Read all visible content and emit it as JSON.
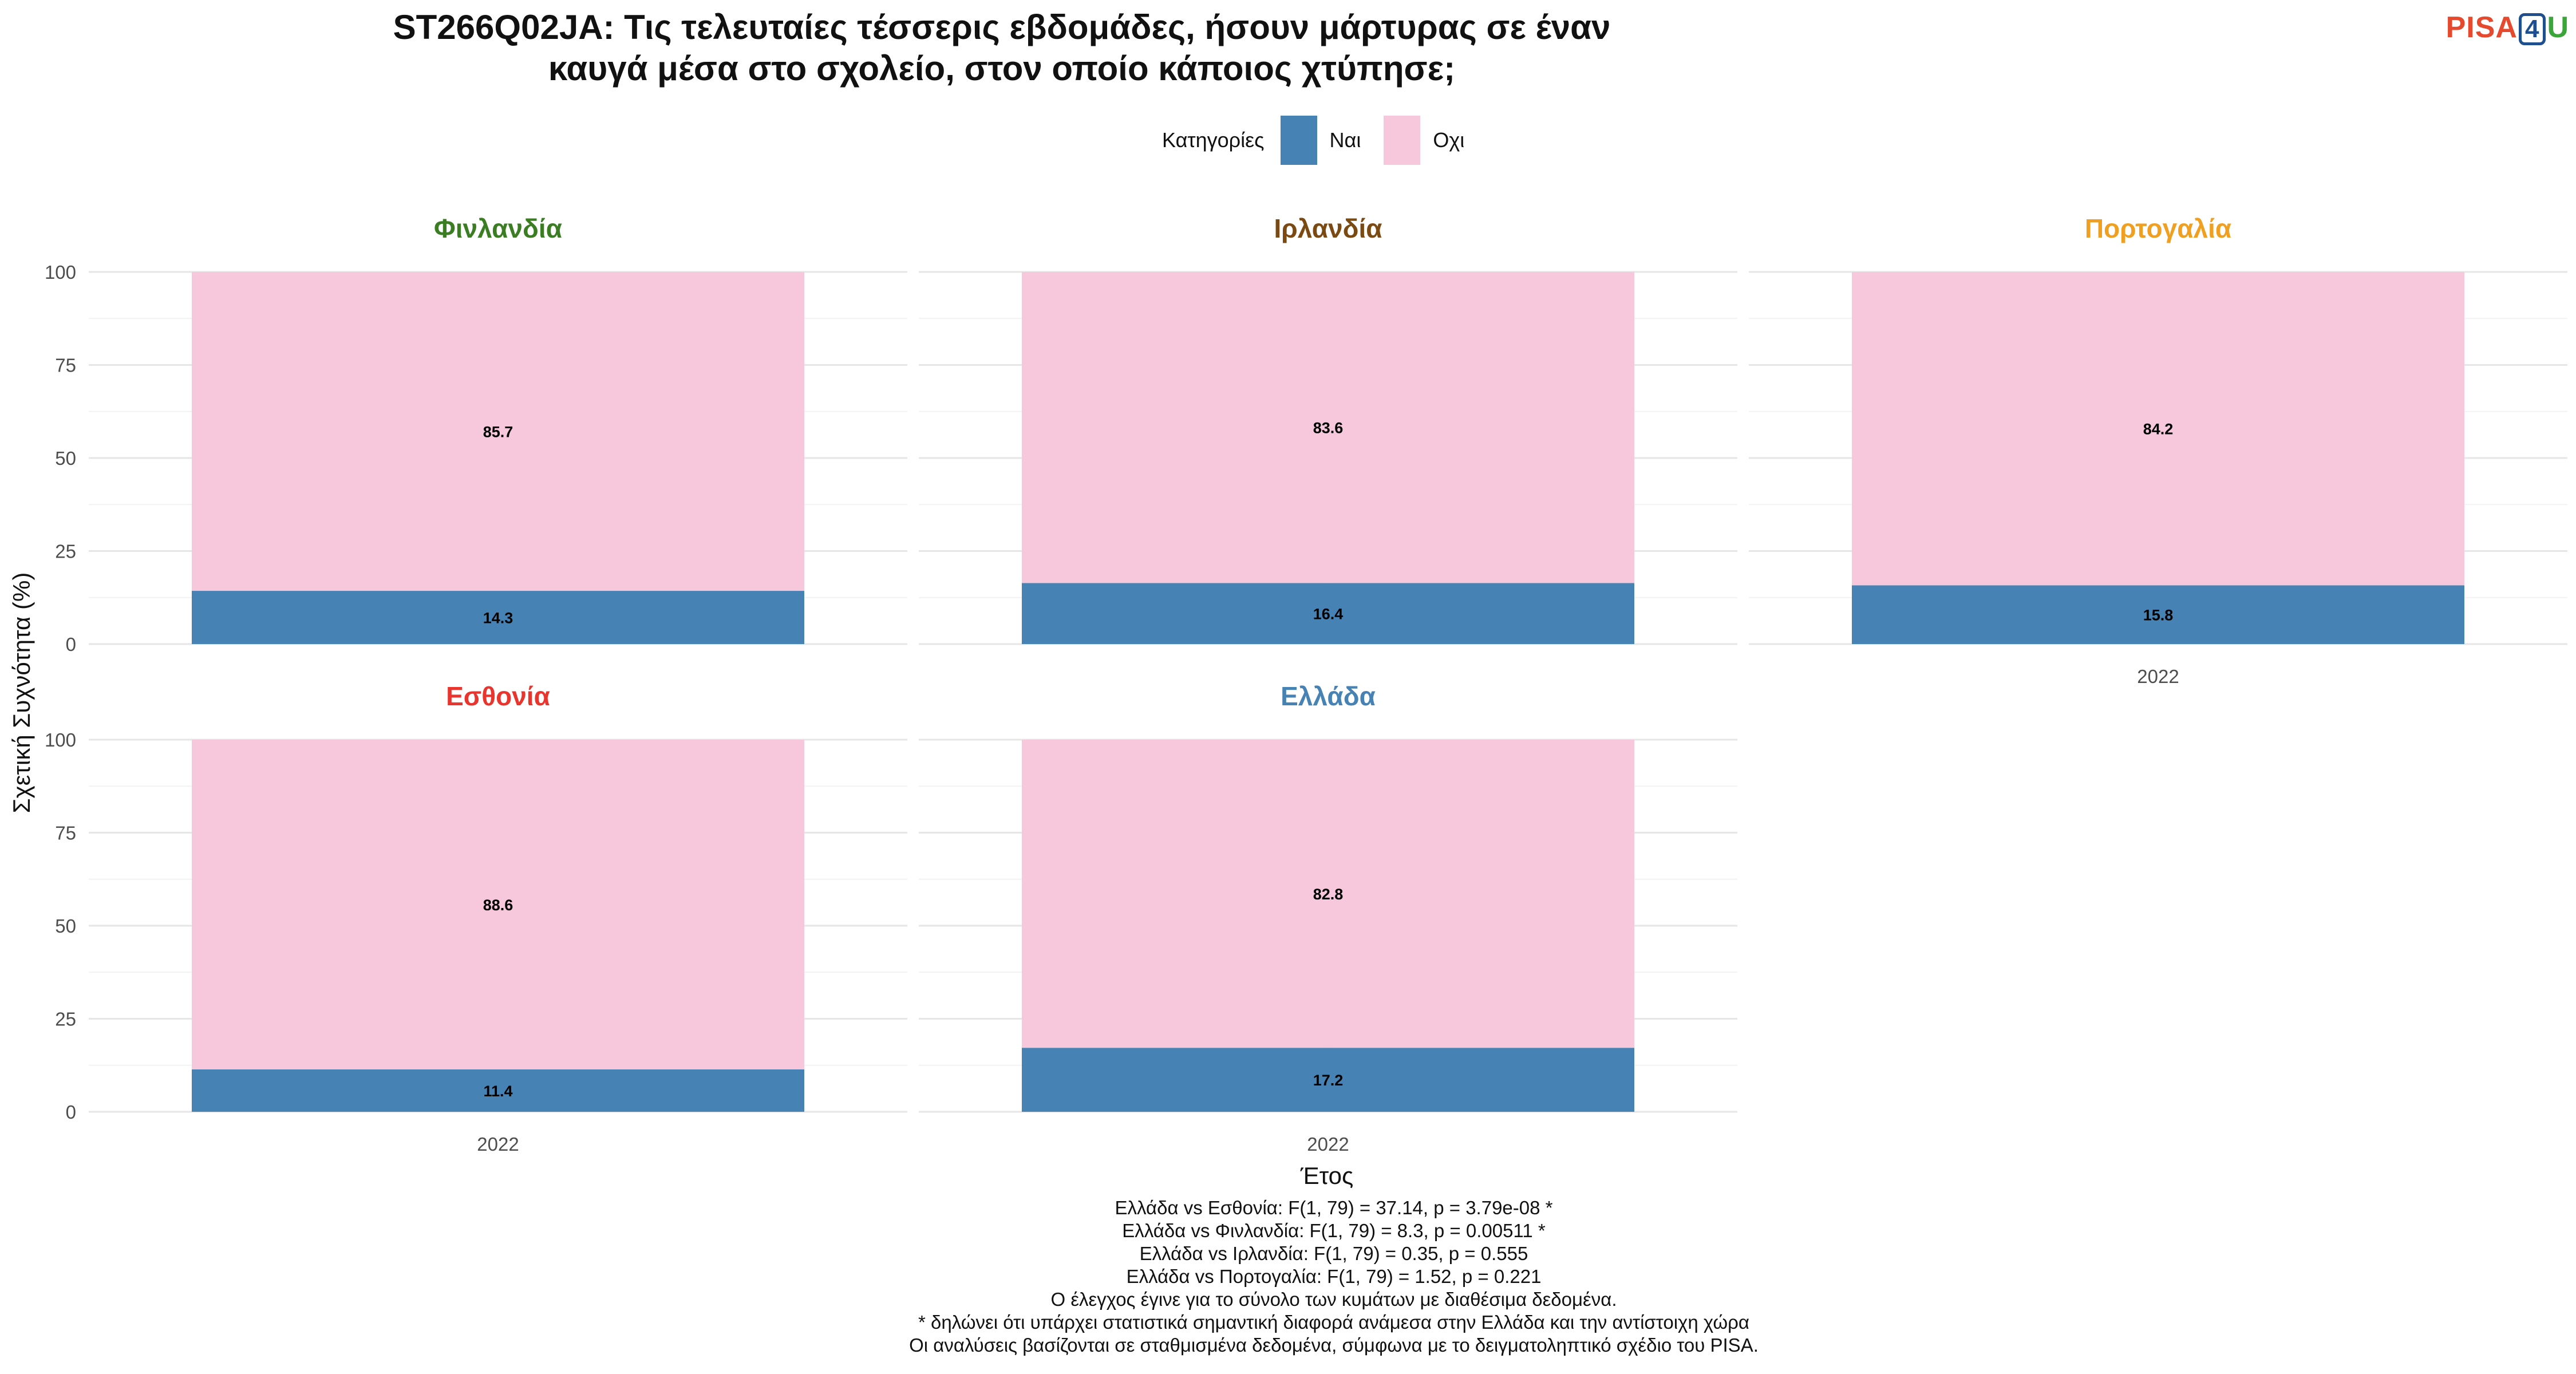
{
  "title_lines": [
    "ST266Q02JA: Τις τελευταίες τέσσερις εβδομάδες, ήσουν μάρτυρας σε έναν",
    "καυγά μέσα στο σχολείο, στον οποίο κάποιος χτύπησε;"
  ],
  "logo": {
    "pisa": "PISA",
    "four": "4",
    "u": "U"
  },
  "legend": {
    "title": "Κατηγορίες",
    "items": [
      {
        "label": "Ναι",
        "color": "#4682b4"
      },
      {
        "label": "Οχι",
        "color": "#f7c8dc"
      }
    ]
  },
  "footnotes": [
    "Ελλάδα vs Εσθονία: F(1, 79) = 37.14, p = 3.79e-08 *",
    "Ελλάδα vs Φινλανδία: F(1, 79) = 8.3, p = 0.00511 *",
    "Ελλάδα vs Ιρλανδία: F(1, 79) = 0.35, p = 0.555",
    "Ελλάδα vs Πορτογαλία: F(1, 79) = 1.52, p = 0.221",
    "Ο έλεγχος έγινε για το σύνολο των κυμάτων με διαθέσιμα δεδομένα.",
    "* δηλώνει ότι υπάρχει στατιστικά σημαντική διαφορά ανάμεσα στην Ελλάδα και την αντίστοιχη χώρα",
    "Οι αναλύσεις βασίζονται σε σταθμισμένα δεδομένα, σύμφωνα με το δειγματοληπτικό σχέδιο του PISA."
  ],
  "chart_data": {
    "type": "bar",
    "stacked": true,
    "xlabel": "Έτος",
    "ylabel": "Σχετική Συχνότητα (%)",
    "ylim": [
      0,
      100
    ],
    "yticks": [
      0,
      25,
      50,
      75,
      100
    ],
    "grid": true,
    "legend_position": "top",
    "panels": [
      {
        "country": "Φινλανδία",
        "color": "#3b7d23",
        "categories": [
          "2022"
        ],
        "series": [
          {
            "name": "Ναι",
            "values": [
              14.3
            ]
          },
          {
            "name": "Οχι",
            "values": [
              85.7
            ]
          }
        ]
      },
      {
        "country": "Ιρλανδία",
        "color": "#7b4a12",
        "categories": [
          "2022"
        ],
        "series": [
          {
            "name": "Ναι",
            "values": [
              16.4
            ]
          },
          {
            "name": "Οχι",
            "values": [
              83.6
            ]
          }
        ]
      },
      {
        "country": "Πορτογαλία",
        "color": "#f0a020",
        "categories": [
          "2022"
        ],
        "series": [
          {
            "name": "Ναι",
            "values": [
              15.8
            ]
          },
          {
            "name": "Οχι",
            "values": [
              84.2
            ]
          }
        ]
      },
      {
        "country": "Εσθονία",
        "color": "#e8352e",
        "categories": [
          "2022"
        ],
        "series": [
          {
            "name": "Ναι",
            "values": [
              11.4
            ]
          },
          {
            "name": "Οχι",
            "values": [
              88.6
            ]
          }
        ]
      },
      {
        "country": "Ελλάδα",
        "color": "#4682b4",
        "categories": [
          "2022"
        ],
        "series": [
          {
            "name": "Ναι",
            "values": [
              17.2
            ]
          },
          {
            "name": "Οχι",
            "values": [
              82.8
            ]
          }
        ]
      }
    ]
  }
}
